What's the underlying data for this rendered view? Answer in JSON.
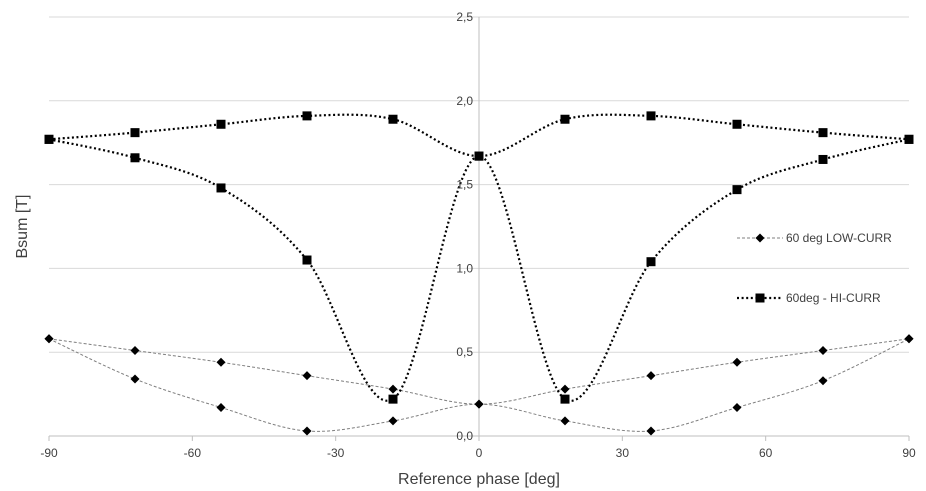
{
  "chart_data": {
    "type": "line",
    "xlabel": "Reference phase [deg]",
    "ylabel": "Bsum [T]",
    "xlim": [
      -90,
      90
    ],
    "ylim": [
      0,
      2.5
    ],
    "xticks": [
      -90,
      -60,
      -30,
      0,
      30,
      60,
      90
    ],
    "xtick_labels": [
      "-90",
      "-60",
      "-30",
      "0",
      "30",
      "60",
      "90"
    ],
    "yticks": [
      0,
      0.5,
      1.0,
      1.5,
      2.0,
      2.5
    ],
    "ytick_labels": [
      "0,0",
      "0,5",
      "1,0",
      "1,5",
      "2,0",
      "2,5"
    ],
    "grid": "horizontal",
    "legend_position": "right",
    "series": [
      {
        "name": "60 deg LOW-CURR",
        "marker": "diamond",
        "line_style": "dashed",
        "color": "#7f7f7f",
        "marker_color": "#000000",
        "curves": [
          {
            "x": [
              -90,
              -72,
              -54,
              -36,
              -18,
              0,
              18,
              36,
              54,
              72,
              90
            ],
            "y": [
              0.58,
              0.51,
              0.44,
              0.36,
              0.28,
              0.19,
              0.28,
              0.36,
              0.44,
              0.51,
              0.58
            ]
          },
          {
            "x": [
              -90,
              -72,
              -54,
              -36,
              -18,
              0,
              18,
              36,
              54,
              72,
              90
            ],
            "y": [
              0.58,
              0.34,
              0.17,
              0.03,
              0.09,
              0.19,
              0.09,
              0.03,
              0.17,
              0.33,
              0.58
            ]
          }
        ]
      },
      {
        "name": "60deg - HI-CURR",
        "marker": "square",
        "line_style": "dotted",
        "color": "#000000",
        "marker_color": "#000000",
        "curves": [
          {
            "x": [
              -90,
              -72,
              -54,
              -36,
              -18,
              0,
              18,
              36,
              54,
              72,
              90
            ],
            "y": [
              1.77,
              1.81,
              1.86,
              1.91,
              1.89,
              1.67,
              1.89,
              1.91,
              1.86,
              1.81,
              1.77
            ]
          },
          {
            "x": [
              -90,
              -72,
              -54,
              -36,
              -18,
              0,
              18,
              36,
              54,
              72,
              90
            ],
            "y": [
              1.77,
              1.66,
              1.48,
              1.05,
              0.22,
              1.67,
              0.22,
              1.04,
              1.47,
              1.65,
              1.77
            ]
          }
        ]
      }
    ]
  }
}
